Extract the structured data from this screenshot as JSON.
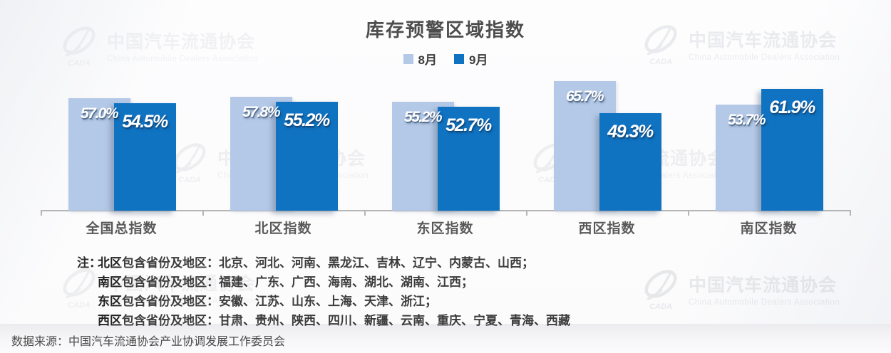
{
  "title": "库存预警区域指数",
  "legend": [
    {
      "label": "8月",
      "color": "#b4c9e7"
    },
    {
      "label": "9月",
      "color": "#0f73c2"
    }
  ],
  "chart_data": {
    "type": "bar",
    "title": "库存预警区域指数",
    "categories": [
      "全国总指数",
      "北区指数",
      "东区指数",
      "西区指数",
      "南区指数"
    ],
    "series": [
      {
        "name": "8月",
        "color": "#b4c9e7",
        "values": [
          57.0,
          57.8,
          55.2,
          65.7,
          53.7
        ]
      },
      {
        "name": "9月",
        "color": "#0f73c2",
        "values": [
          54.5,
          55.2,
          52.7,
          49.3,
          61.9
        ]
      }
    ],
    "value_suffix": "%",
    "ylim": [
      0,
      70
    ],
    "grid": false,
    "legend_position": "top",
    "xlabel": "",
    "ylabel": ""
  },
  "notes": {
    "prefix": "注：",
    "lines": [
      {
        "bold": "北区",
        "rest": "包含省份及地区：北京、河北、河南、黑龙江、吉林、辽宁、内蒙古、山西；"
      },
      {
        "bold": "南区",
        "rest": "包含省份及地区：福建、广东、广西、海南、湖北、湖南、江西；"
      },
      {
        "bold": "东区",
        "rest": "包含省份及地区：安徽、江苏、山东、上海、天津、浙江；"
      },
      {
        "bold": "西区",
        "rest": "包含省份及地区：甘肃、贵州、陕西、四川、新疆、云南、重庆、宁夏、青海、西藏"
      }
    ]
  },
  "source": "数据来源：中国汽车流通协会产业协调发展工作委员会",
  "watermark": {
    "cn": "中国汽车流通协会",
    "en": "China Automobile Dealers Association",
    "logo_text": "CADA"
  },
  "colors": {
    "aug_bar": "#b4c9e7",
    "sep_bar": "#0f73c2",
    "axis": "#b5b5b5",
    "title_text": "#4d4d4d",
    "category_text": "#595959"
  }
}
